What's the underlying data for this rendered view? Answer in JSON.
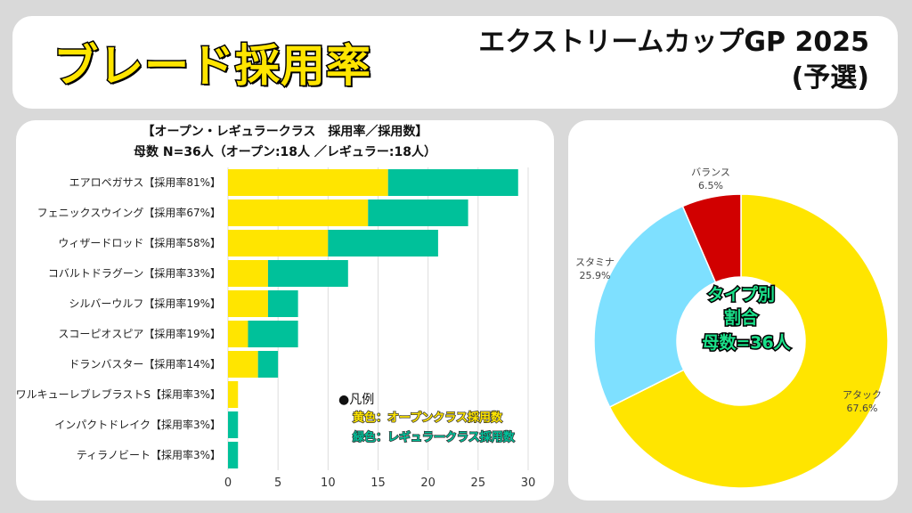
{
  "header": {
    "title": "ブレード採用率",
    "event_line1": "エクストリームカップGP 2025",
    "event_line2": "(予選)"
  },
  "colors": {
    "open": "#ffe500",
    "regular": "#00c19a",
    "attack": "#ffe500",
    "stamina": "#7ee0ff",
    "balance": "#d10000"
  },
  "chart_data": [
    {
      "type": "bar",
      "orientation": "horizontal",
      "stacked": true,
      "title": "【オープン・レギュラークラス　採用率／採用数】",
      "subtitle": "母数 N=36人（オープン:18人 ／レギュラー:18人）",
      "categories": [
        "エアロペガサス【採用率81%】",
        "フェニックスウイング【採用率67%】",
        "ウィザードロッド【採用率58%】",
        "コバルトドラグーン【採用率33%】",
        "シルバーウルフ【採用率19%】",
        "スコーピオスピア【採用率19%】",
        "ドランバスター【採用率14%】",
        "ワルキューレブレブラストS【採用率3%】",
        "インパクトドレイク【採用率3%】",
        "ティラノビート【採用率3%】"
      ],
      "series": [
        {
          "name": "黄色：オープンクラス採用数",
          "values": [
            16,
            14,
            10,
            4,
            4,
            2,
            3,
            1,
            0,
            0
          ]
        },
        {
          "name": "緑色：レギュラークラス採用数",
          "values": [
            13,
            10,
            11,
            8,
            3,
            5,
            2,
            0,
            1,
            1
          ]
        }
      ],
      "xlim": [
        0,
        30
      ],
      "xticks": [
        "0",
        "5",
        "10",
        "15",
        "20",
        "25",
        "30"
      ],
      "grid": true,
      "legend_title": "●凡例",
      "legend_placement": "bottom-right"
    },
    {
      "type": "pie",
      "donut": true,
      "center_text": [
        "タイプ別",
        "割合",
        "母数=36人"
      ],
      "slices": [
        {
          "label": "アタック",
          "value": 67.6,
          "text": "67.6%"
        },
        {
          "label": "スタミナ",
          "value": 25.9,
          "text": "25.9%"
        },
        {
          "label": "バランス",
          "value": 6.5,
          "text": "6.5%"
        }
      ]
    }
  ]
}
